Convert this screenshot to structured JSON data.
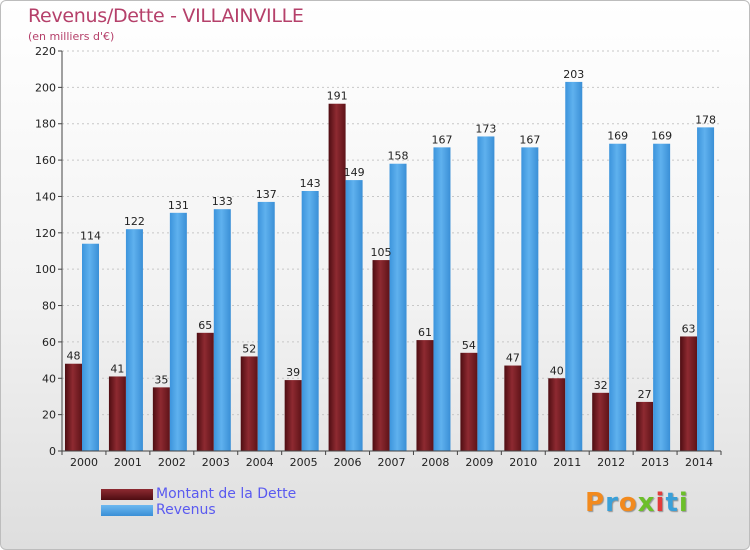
{
  "title": "Revenus/Dette - VILLAINVILLE",
  "subtitle": "(en milliers d'€)",
  "colors": {
    "debt": "#7a1c22",
    "revenue": "#4ea3e6",
    "title": "#b5406a",
    "legend_text": "#5a5af0"
  },
  "chart_data": {
    "type": "bar",
    "title": "Revenus/Dette - VILLAINVILLE",
    "subtitle": "(en milliers d'€)",
    "categories": [
      "2000",
      "2001",
      "2002",
      "2003",
      "2004",
      "2005",
      "2006",
      "2007",
      "2008",
      "2009",
      "2010",
      "2011",
      "2012",
      "2013",
      "2014"
    ],
    "series": [
      {
        "name": "Montant de la Dette",
        "values": [
          48,
          41,
          35,
          65,
          52,
          39,
          191,
          105,
          61,
          54,
          47,
          40,
          32,
          27,
          63
        ]
      },
      {
        "name": "Revenus",
        "values": [
          114,
          122,
          131,
          133,
          137,
          143,
          149,
          158,
          167,
          173,
          167,
          203,
          169,
          169,
          178
        ]
      }
    ],
    "ylim": [
      0,
      220
    ],
    "yticks": [
      0,
      20,
      40,
      60,
      80,
      100,
      120,
      140,
      160,
      180,
      200,
      220
    ],
    "grid": true,
    "legend": "bottom-left"
  },
  "legend": [
    {
      "label": "Montant de la Dette"
    },
    {
      "label": "Revenus"
    }
  ],
  "logo": {
    "letters": [
      "P",
      "r",
      "o",
      "x",
      "i",
      "t",
      "i"
    ],
    "colors": [
      "#f28a1e",
      "#3aa0d8",
      "#f28a1e",
      "#6cbf2a",
      "#e23b3b",
      "#3aa0d8",
      "#6cbf2a"
    ]
  }
}
